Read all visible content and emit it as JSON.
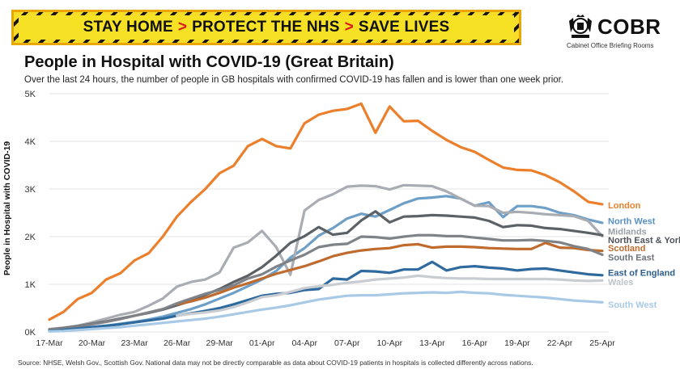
{
  "banner": {
    "part1": "STAY HOME",
    "part2": "PROTECT THE NHS",
    "part3": "SAVE LIVES",
    "separator": ">"
  },
  "logo": {
    "name": "COBR",
    "subtitle": "Cabinet Office Briefing Rooms",
    "icon": "royal-crest-icon"
  },
  "title": "People in Hospital with COVID-19 (Great Britain)",
  "subtitle": "Over the last 24 hours, the number of people in GB hospitals with confirmed COVID-19 has fallen and is lower than one week prior.",
  "source": "Source: NHSE, Welsh Gov., Scottish Gov. National data may not be directly comparable as data about COVID-19 patients in hospitals is collected differently across nations.",
  "chart_data": {
    "type": "line",
    "xlabel": "",
    "ylabel": "People in Hospital with COVID-19",
    "ylim": [
      0,
      5000
    ],
    "yticks": [
      0,
      1000,
      2000,
      3000,
      4000,
      5000
    ],
    "ytick_labels": [
      "0K",
      "1K",
      "2K",
      "3K",
      "4K",
      "5K"
    ],
    "x_tick_labels": [
      "17-Mar",
      "20-Mar",
      "23-Mar",
      "26-Mar",
      "29-Mar",
      "01-Apr",
      "04-Apr",
      "07-Apr",
      "10-Apr",
      "13-Apr",
      "16-Apr",
      "19-Apr",
      "22-Apr",
      "25-Apr"
    ],
    "x": [
      "17-Mar",
      "18-Mar",
      "19-Mar",
      "20-Mar",
      "21-Mar",
      "22-Mar",
      "23-Mar",
      "24-Mar",
      "25-Mar",
      "26-Mar",
      "27-Mar",
      "28-Mar",
      "29-Mar",
      "30-Mar",
      "31-Mar",
      "01-Apr",
      "02-Apr",
      "03-Apr",
      "04-Apr",
      "05-Apr",
      "06-Apr",
      "07-Apr",
      "08-Apr",
      "09-Apr",
      "10-Apr",
      "11-Apr",
      "12-Apr",
      "13-Apr",
      "14-Apr",
      "15-Apr",
      "16-Apr",
      "17-Apr",
      "18-Apr",
      "19-Apr",
      "20-Apr",
      "21-Apr",
      "22-Apr",
      "23-Apr",
      "24-Apr",
      "25-Apr"
    ],
    "grid": "horizontal",
    "legend": "direct labels at line ends",
    "series": [
      {
        "name": "London",
        "color": "#ec7f2c",
        "label_color": "#ec7f2c",
        "values": [
          260,
          420,
          690,
          820,
          1100,
          1230,
          1500,
          1650,
          2000,
          2420,
          2730,
          3000,
          3330,
          3490,
          3900,
          4050,
          3900,
          3850,
          4380,
          4560,
          4640,
          4680,
          4790,
          4180,
          4730,
          4420,
          4430,
          4220,
          4030,
          3880,
          3780,
          3610,
          3450,
          3400,
          3390,
          3290,
          3140,
          2950,
          2730,
          2680
        ]
      },
      {
        "name": "North West",
        "color": "#6e9fc7",
        "label_color": "#5a8fc4",
        "values": [
          40,
          60,
          80,
          100,
          130,
          170,
          210,
          260,
          320,
          400,
          480,
          580,
          700,
          820,
          960,
          1100,
          1280,
          1560,
          1760,
          2020,
          2180,
          2380,
          2480,
          2420,
          2560,
          2700,
          2800,
          2820,
          2850,
          2800,
          2650,
          2720,
          2410,
          2640,
          2640,
          2600,
          2500,
          2450,
          2360,
          2290
        ]
      },
      {
        "name": "Midlands",
        "color": "#a9adb3",
        "label_color": "#9a9ea4",
        "values": [
          60,
          90,
          130,
          200,
          280,
          360,
          420,
          550,
          700,
          950,
          1050,
          1100,
          1250,
          1770,
          1880,
          2120,
          1780,
          1200,
          2550,
          2770,
          2890,
          3050,
          3070,
          3060,
          2990,
          3080,
          3070,
          3060,
          2950,
          2800,
          2650,
          2640,
          2500,
          2520,
          2500,
          2470,
          2450,
          2430,
          2330,
          2010
        ]
      },
      {
        "name": "North East & Yorkshire",
        "color": "#5c6166",
        "label_color": "#4f5358",
        "values": [
          50,
          80,
          120,
          170,
          220,
          280,
          340,
          400,
          470,
          560,
          650,
          780,
          900,
          1050,
          1180,
          1360,
          1600,
          1870,
          2010,
          2200,
          2040,
          2080,
          2340,
          2530,
          2300,
          2420,
          2430,
          2450,
          2440,
          2420,
          2400,
          2330,
          2200,
          2240,
          2230,
          2180,
          2160,
          2120,
          2080,
          2030
        ]
      },
      {
        "name": "Scotland",
        "color": "#c06b2e",
        "label_color": "#c06b2e",
        "values": [
          null,
          null,
          null,
          null,
          null,
          null,
          null,
          null,
          null,
          580,
          640,
          720,
          820,
          930,
          1020,
          1120,
          1220,
          1300,
          1380,
          1480,
          1590,
          1660,
          1710,
          1740,
          1760,
          1820,
          1840,
          1770,
          1790,
          1790,
          1780,
          1760,
          1750,
          1740,
          1740,
          1870,
          1770,
          1760,
          1720,
          1700
        ]
      },
      {
        "name": "South East",
        "color": "#7f8387",
        "label_color": "#6f7377",
        "values": [
          50,
          70,
          110,
          160,
          210,
          270,
          340,
          410,
          480,
          600,
          700,
          800,
          880,
          980,
          1120,
          1210,
          1370,
          1500,
          1620,
          1780,
          1830,
          1850,
          2000,
          1990,
          1960,
          2000,
          2030,
          2030,
          2010,
          2010,
          1980,
          1950,
          1920,
          1920,
          1930,
          1910,
          1880,
          1800,
          1740,
          1620
        ]
      },
      {
        "name": "East of England",
        "color": "#2f6a9e",
        "label_color": "#2d5f8e",
        "values": [
          20,
          40,
          70,
          100,
          130,
          160,
          200,
          240,
          280,
          340,
          390,
          440,
          500,
          580,
          670,
          760,
          800,
          820,
          880,
          900,
          1120,
          1100,
          1280,
          1270,
          1240,
          1310,
          1310,
          1470,
          1290,
          1360,
          1380,
          1350,
          1330,
          1290,
          1320,
          1330,
          1290,
          1250,
          1210,
          1190
        ]
      },
      {
        "name": "Wales",
        "color": "#c9ccd0",
        "label_color": "#c0c4c8",
        "values": [
          null,
          null,
          null,
          null,
          null,
          null,
          null,
          null,
          null,
          340,
          380,
          410,
          450,
          520,
          620,
          730,
          770,
          840,
          920,
          960,
          990,
          1030,
          1060,
          1100,
          1120,
          1140,
          1180,
          1150,
          1130,
          1120,
          1120,
          1110,
          1110,
          1110,
          1110,
          1110,
          1100,
          1080,
          1070,
          1080
        ]
      },
      {
        "name": "South West",
        "color": "#a8cae7",
        "label_color": "#a8cae7",
        "values": [
          10,
          20,
          40,
          60,
          80,
          100,
          130,
          160,
          190,
          220,
          250,
          280,
          320,
          370,
          420,
          470,
          510,
          560,
          620,
          680,
          720,
          760,
          770,
          770,
          790,
          810,
          820,
          830,
          820,
          840,
          820,
          810,
          780,
          760,
          740,
          720,
          690,
          660,
          640,
          620
        ]
      }
    ]
  }
}
